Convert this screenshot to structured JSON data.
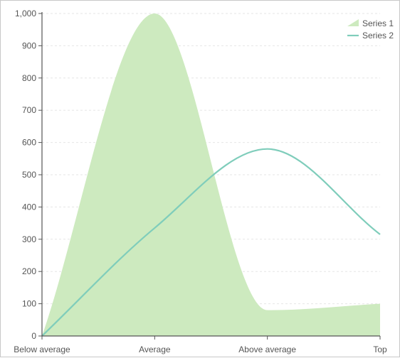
{
  "chart_data": {
    "type": "area",
    "categories": [
      "Below average",
      "Average",
      "Above average",
      "Top"
    ],
    "series": [
      {
        "name": "Series 1",
        "type": "area",
        "values": [
          0,
          1000,
          80,
          100
        ],
        "color": "#cdeabf"
      },
      {
        "name": "Series 2",
        "type": "line",
        "values": [
          0,
          335,
          580,
          315
        ],
        "color": "#7fcdbb"
      }
    ],
    "ylim": [
      0,
      1000
    ],
    "yticks": [
      "0",
      "100",
      "200",
      "300",
      "400",
      "500",
      "600",
      "700",
      "800",
      "900",
      "1,000"
    ],
    "grid": true,
    "legend": "top-right"
  }
}
